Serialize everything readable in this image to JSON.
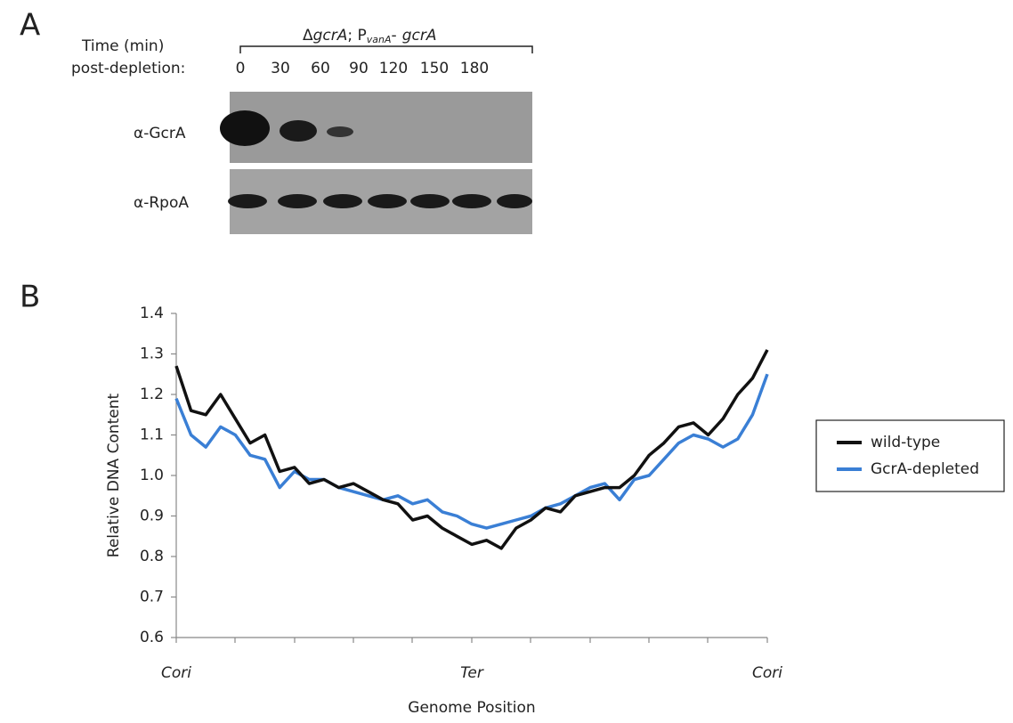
{
  "panel_a": {
    "label": "A",
    "genotype": [
      "Δ",
      "gcrA",
      "; P",
      "vanA",
      "-",
      "gcrA"
    ],
    "time_label": "Time (min)",
    "post_label": "post-depletion:",
    "times": [
      0,
      30,
      60,
      90,
      120,
      150,
      180
    ],
    "rows": [
      "α-GcrA",
      "α-RpoA"
    ]
  },
  "panel_b": {
    "label": "B"
  },
  "chart_data": {
    "type": "line",
    "xlabel": "Genome Position",
    "ylabel": "Relative DNA Content",
    "x": [
      0,
      2.5,
      5,
      7.5,
      10,
      12.5,
      15,
      17.5,
      20,
      22.5,
      25,
      27.5,
      30,
      32.5,
      35,
      37.5,
      40,
      42.5,
      45,
      47.5,
      50,
      52.5,
      55,
      57.5,
      60,
      62.5,
      65,
      67.5,
      70,
      72.5,
      75,
      77.5,
      80,
      82.5,
      85,
      87.5,
      90,
      92.5,
      95,
      97.5,
      100
    ],
    "series": [
      {
        "name": "wild-type",
        "color": "#111111",
        "values": [
          1.27,
          1.16,
          1.15,
          1.2,
          1.14,
          1.08,
          1.1,
          1.01,
          1.02,
          0.98,
          0.99,
          0.97,
          0.98,
          0.96,
          0.94,
          0.93,
          0.89,
          0.9,
          0.87,
          0.85,
          0.83,
          0.84,
          0.82,
          0.87,
          0.89,
          0.92,
          0.91,
          0.95,
          0.96,
          0.97,
          0.97,
          1.0,
          1.05,
          1.08,
          1.12,
          1.13,
          1.1,
          1.14,
          1.2,
          1.24,
          1.31
        ]
      },
      {
        "name": "GcrA-depleted",
        "color": "#3a7fd5",
        "values": [
          1.19,
          1.1,
          1.07,
          1.12,
          1.1,
          1.05,
          1.04,
          0.97,
          1.01,
          0.99,
          0.99,
          0.97,
          0.96,
          0.95,
          0.94,
          0.95,
          0.93,
          0.94,
          0.91,
          0.9,
          0.88,
          0.87,
          0.88,
          0.89,
          0.9,
          0.92,
          0.93,
          0.95,
          0.97,
          0.98,
          0.94,
          0.99,
          1.0,
          1.04,
          1.08,
          1.1,
          1.09,
          1.07,
          1.09,
          1.15,
          1.25
        ]
      }
    ],
    "xlim": [
      0,
      100
    ],
    "xticks": [
      {
        "value": 0,
        "label": "Cori"
      },
      {
        "value": 50,
        "label": "Ter"
      },
      {
        "value": 100,
        "label": "Cori"
      }
    ],
    "ylim": [
      0.6,
      1.4
    ],
    "yticks": [
      0.6,
      0.7,
      0.8,
      0.9,
      {
        "value": 1.0,
        "label": "1.0"
      },
      1.1,
      1.2,
      1.3,
      1.4
    ],
    "legend": "right"
  }
}
